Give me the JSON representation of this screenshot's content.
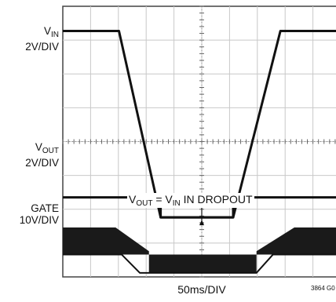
{
  "chart_data": {
    "type": "line",
    "xlabel": "50ms/DIV",
    "figure_id": "3864 G0",
    "grid": true,
    "x_divisions": 10,
    "y_divisions": 8,
    "units": {
      "x": "div",
      "y": "div"
    },
    "channels": [
      {
        "name_main": "V",
        "name_sub": "IN",
        "scale": "2V/DIV"
      },
      {
        "name_main": "V",
        "name_sub": "OUT",
        "scale": "2V/DIV"
      },
      {
        "name_main": "GATE",
        "name_sub": "",
        "scale": "10V/DIV"
      }
    ],
    "annotation": {
      "lhs_main": "V",
      "lhs_sub": "OUT",
      "mid": " = V",
      "mid_sub": "IN",
      "rest": " IN DROPOUT"
    },
    "series": [
      {
        "points": [
          [
            0.0,
            7.27
          ],
          [
            2.02,
            7.27
          ],
          [
            3.52,
            1.76
          ],
          [
            6.13,
            1.76
          ],
          [
            7.83,
            7.27
          ],
          [
            10.0,
            7.27
          ]
        ],
        "stroke": 3
      },
      {
        "points": [
          [
            0.0,
            2.35
          ],
          [
            3.52,
            2.35
          ],
          [
            3.52,
            1.76
          ],
          [
            6.13,
            1.76
          ],
          [
            6.13,
            2.35
          ],
          [
            10.0,
            2.35
          ]
        ],
        "stroke": 3
      },
      {
        "points": [
          [
            0.0,
            0.66
          ],
          [
            2.12,
            0.66
          ],
          [
            2.77,
            0.12
          ],
          [
            6.97,
            0.12
          ],
          [
            7.56,
            0.66
          ],
          [
            10.0,
            0.66
          ]
        ],
        "stroke": 2
      }
    ],
    "gate_band": [
      [
        0.0,
        1.46
      ],
      [
        1.9,
        1.46
      ],
      [
        3.1,
        0.76
      ],
      [
        3.1,
        0.12
      ],
      [
        6.97,
        0.12
      ],
      [
        6.97,
        0.76
      ],
      [
        8.33,
        1.46
      ],
      [
        10.0,
        1.46
      ],
      [
        10.0,
        0.66
      ],
      [
        0.0,
        0.66
      ]
    ]
  }
}
